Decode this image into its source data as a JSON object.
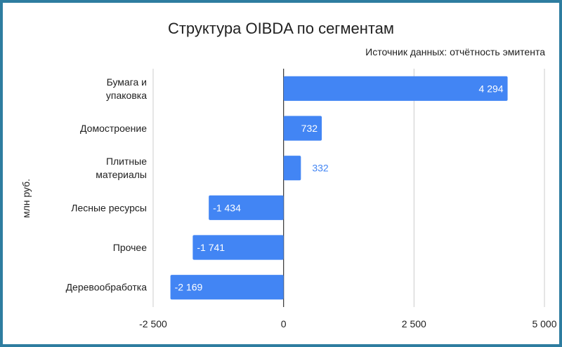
{
  "colors": {
    "bar": "#4285f4",
    "frame": "#2e7da0",
    "grid": "#cccccc",
    "zero_line": "#333333",
    "label_inside": "#ffffff",
    "label_outside": "#4285f4"
  },
  "chart_data": {
    "type": "bar",
    "orientation": "horizontal",
    "title": "Структура OIBDA по сегментам",
    "subtitle": "Источник данных: отчётность эмитента",
    "xlabel": "",
    "ylabel": "млн руб.",
    "categories": [
      "Бумага и упаковка",
      "Домостроение",
      "Плитные материалы",
      "Лесные ресурсы",
      "Прочее",
      "Деревообработка"
    ],
    "category_lines": [
      [
        "Бумага и",
        "упаковка"
      ],
      [
        "Домостроение"
      ],
      [
        "Плитные",
        "материалы"
      ],
      [
        "Лесные ресурсы"
      ],
      [
        "Прочее"
      ],
      [
        "Деревообработка"
      ]
    ],
    "values": [
      4294,
      732,
      332,
      -1434,
      -1741,
      -2169
    ],
    "value_labels": [
      "4 294",
      "732",
      "332",
      "-1 434",
      "-1 741",
      "-2 169"
    ],
    "xlim": [
      -2500,
      5000
    ],
    "xticks": [
      -2500,
      0,
      2500,
      5000
    ],
    "xtick_labels": [
      "-2 500",
      "0",
      "2 500",
      "5 000"
    ],
    "grid": true,
    "legend": "none"
  }
}
